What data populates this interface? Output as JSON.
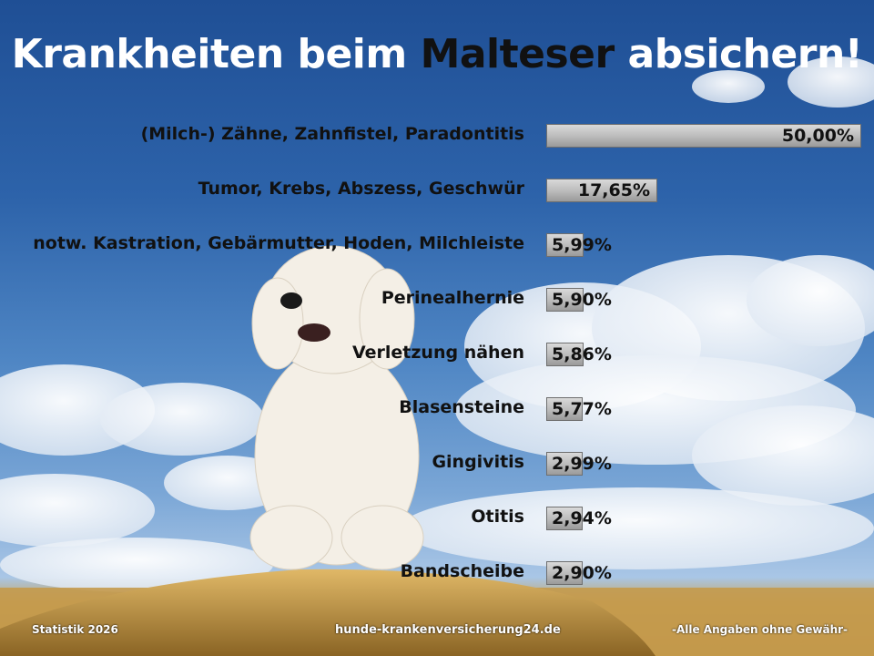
{
  "title": {
    "part1": "Krankheiten beim ",
    "highlight": "Malteser",
    "part2": " absichern!"
  },
  "footer": {
    "left": "Statistik 2026",
    "center": "hunde-krankenversicherung24.de",
    "right": "-Alle Angaben ohne Gewähr-"
  },
  "colors": {
    "bar_fill": "#bdbdbd",
    "bar_border": "#6f6f6f",
    "title_text": "#ffffff",
    "highlight_text": "#111111"
  },
  "chart_data": {
    "type": "bar",
    "orientation": "horizontal",
    "title": "Krankheiten beim Malteser absichern!",
    "categories": [
      "(Milch-) Zähne, Zahnfistel, Paradontitis",
      "Tumor, Krebs, Abszess, Geschwür",
      "notw. Kastration, Gebärmutter, Hoden, Milchleiste",
      "Perinealhernie",
      "Verletzung nähen",
      "Blasensteine",
      "Gingivitis",
      "Otitis",
      "Bandscheibe"
    ],
    "values": [
      50.0,
      17.65,
      5.99,
      5.9,
      5.86,
      5.77,
      2.99,
      2.94,
      2.9
    ],
    "value_labels": [
      "50,00%",
      "17,65%",
      "5,99%",
      "5,90%",
      "5,86%",
      "5,77%",
      "2,99%",
      "2,94%",
      "2,90%"
    ],
    "xlim": [
      0,
      50
    ],
    "grid": false,
    "legend": "none"
  }
}
